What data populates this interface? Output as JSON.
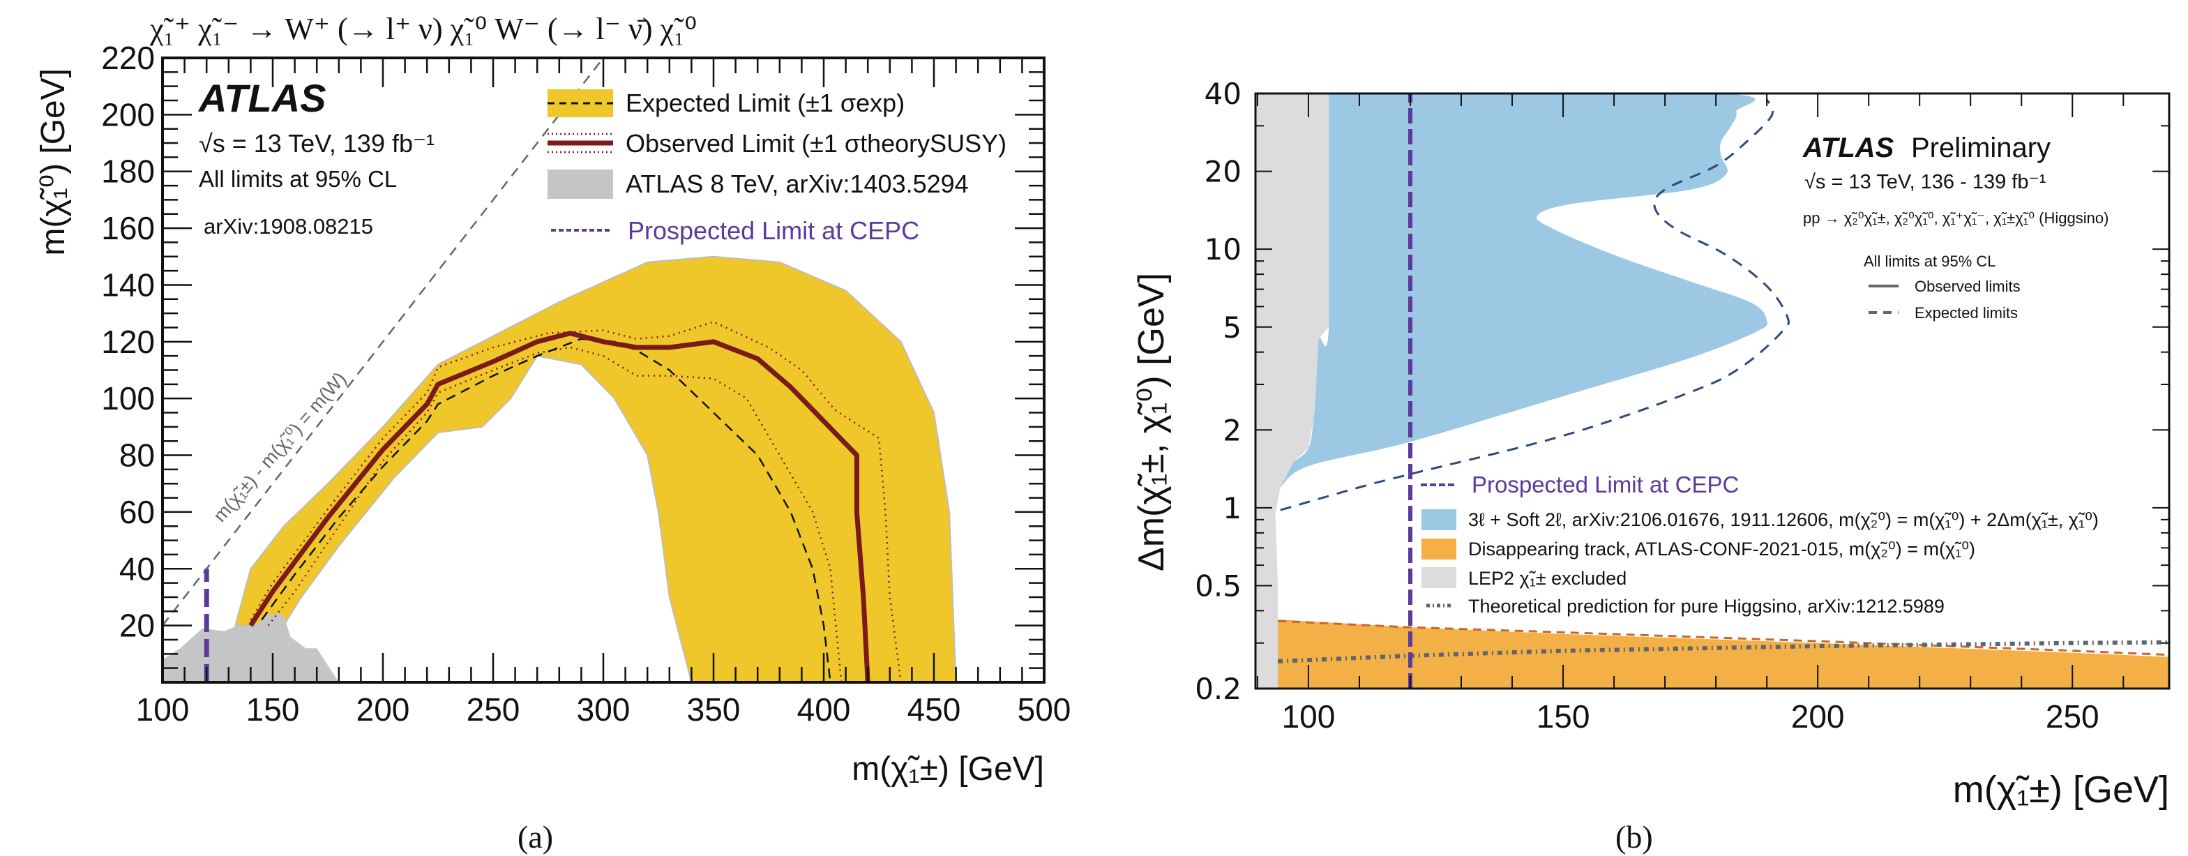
{
  "chart_data": [
    {
      "type": "area",
      "panel_caption": "(a)",
      "title": "χ̃₁⁺ χ̃₁⁻ → W⁺ (→ l⁺ ν) χ̃₁⁰ W⁻ (→ l⁻ ν̄) χ̃₁⁰",
      "xlabel": "m(χ̃₁±) [GeV]",
      "ylabel": "m(χ̃₁⁰) [GeV]",
      "xlim": [
        100,
        500
      ],
      "ylim": [
        0,
        220
      ],
      "xticks": [
        100,
        150,
        200,
        250,
        300,
        350,
        400,
        450,
        500
      ],
      "yticks": [
        20,
        40,
        60,
        80,
        100,
        120,
        140,
        160,
        180,
        200,
        220
      ],
      "annotations": {
        "experiment": "ATLAS",
        "energy": "√s = 13 TeV, 139 fb⁻¹",
        "cl": "All limits at 95% CL",
        "ref": "arXiv:1908.08215",
        "diagonal": "m(χ̃₁±) - m(χ̃₁⁰) = m(W)"
      },
      "legend": [
        {
          "label": "Expected Limit (±1 σ_exp)",
          "kind": "band-dashed",
          "color": "#f0c72a"
        },
        {
          "label": "Observed Limit (±1 σ_theory^SUSY)",
          "kind": "solid-dotted",
          "color": "#7b1a1a"
        },
        {
          "label": "ATLAS 8 TeV, arXiv:1403.5294",
          "kind": "fill",
          "color": "#c4c5c7"
        },
        {
          "label": "Prospected Limit at CEPC",
          "kind": "dashed",
          "color": "#5b3a9a"
        }
      ],
      "legend_placement": "top-right",
      "series": {
        "atlas8_fill": [
          [
            100,
            0
          ],
          [
            100,
            8
          ],
          [
            108,
            12
          ],
          [
            118,
            19
          ],
          [
            128,
            18
          ],
          [
            134,
            20
          ],
          [
            142,
            20
          ],
          [
            148,
            24
          ],
          [
            155,
            24
          ],
          [
            158,
            16
          ],
          [
            165,
            12
          ],
          [
            170,
            12
          ],
          [
            180,
            0
          ]
        ],
        "expected_band_outer": [
          [
            133,
            20
          ],
          [
            140,
            40
          ],
          [
            155,
            55
          ],
          [
            175,
            70
          ],
          [
            200,
            90
          ],
          [
            225,
            112
          ],
          [
            250,
            122
          ],
          [
            280,
            134
          ],
          [
            320,
            148
          ],
          [
            350,
            150
          ],
          [
            380,
            148
          ],
          [
            410,
            138
          ],
          [
            435,
            120
          ],
          [
            450,
            95
          ],
          [
            457,
            60
          ],
          [
            460,
            0
          ]
        ],
        "expected_band_inner": [
          [
            340,
            0
          ],
          [
            330,
            30
          ],
          [
            325,
            60
          ],
          [
            320,
            80
          ],
          [
            305,
            100
          ],
          [
            290,
            112
          ],
          [
            270,
            115
          ],
          [
            258,
            100
          ],
          [
            245,
            90
          ],
          [
            225,
            88
          ],
          [
            205,
            72
          ],
          [
            180,
            48
          ],
          [
            163,
            30
          ],
          [
            155,
            20
          ]
        ],
        "expected_line": [
          [
            145,
            22
          ],
          [
            160,
            38
          ],
          [
            180,
            58
          ],
          [
            200,
            76
          ],
          [
            220,
            92
          ],
          [
            225,
            98
          ],
          [
            250,
            108
          ],
          [
            270,
            115
          ],
          [
            290,
            121
          ],
          [
            305,
            120
          ],
          [
            315,
            117
          ],
          [
            330,
            110
          ],
          [
            350,
            95
          ],
          [
            370,
            80
          ],
          [
            385,
            60
          ],
          [
            395,
            40
          ],
          [
            400,
            20
          ],
          [
            403,
            0
          ]
        ],
        "observed_line": [
          [
            140,
            20
          ],
          [
            150,
            32
          ],
          [
            175,
            58
          ],
          [
            200,
            82
          ],
          [
            220,
            98
          ],
          [
            225,
            105
          ],
          [
            250,
            113
          ],
          [
            270,
            120
          ],
          [
            285,
            123
          ],
          [
            300,
            120
          ],
          [
            315,
            118
          ],
          [
            330,
            118
          ],
          [
            350,
            120
          ],
          [
            370,
            114
          ],
          [
            385,
            104
          ],
          [
            400,
            92
          ],
          [
            415,
            80
          ],
          [
            415,
            60
          ],
          [
            418,
            30
          ],
          [
            420,
            0
          ]
        ],
        "observed_up": [
          [
            140,
            22
          ],
          [
            150,
            35
          ],
          [
            175,
            61
          ],
          [
            200,
            86
          ],
          [
            220,
            102
          ],
          [
            225,
            111
          ],
          [
            250,
            118
          ],
          [
            275,
            123
          ],
          [
            300,
            124
          ],
          [
            315,
            121
          ],
          [
            330,
            122
          ],
          [
            350,
            127
          ],
          [
            375,
            118
          ],
          [
            390,
            110
          ],
          [
            405,
            96
          ],
          [
            425,
            86
          ],
          [
            428,
            60
          ],
          [
            430,
            30
          ],
          [
            435,
            0
          ]
        ],
        "observed_down": [
          [
            148,
            20
          ],
          [
            160,
            32
          ],
          [
            180,
            55
          ],
          [
            200,
            78
          ],
          [
            220,
            95
          ],
          [
            225,
            102
          ],
          [
            250,
            110
          ],
          [
            270,
            116
          ],
          [
            285,
            118
          ],
          [
            300,
            115
          ],
          [
            315,
            108
          ],
          [
            330,
            108
          ],
          [
            350,
            107
          ],
          [
            365,
            100
          ],
          [
            380,
            80
          ],
          [
            395,
            60
          ],
          [
            403,
            40
          ],
          [
            408,
            0
          ]
        ],
        "diagonal": [
          [
            100,
            20
          ],
          [
            220,
            140
          ],
          [
            300,
            220
          ]
        ],
        "cepc_line": [
          [
            120,
            0
          ],
          [
            120,
            40
          ]
        ]
      }
    },
    {
      "type": "area",
      "panel_caption": "(b)",
      "xlabel": "m(χ̃₁±) [GeV]",
      "ylabel": "Δm(χ̃₁±, χ̃₁⁰) [GeV]",
      "xlim": [
        89.6,
        269
      ],
      "ylim": [
        0.2,
        40
      ],
      "yscale": "log",
      "xticks": [
        100,
        150,
        200,
        250
      ],
      "yticks": [
        0.2,
        0.5,
        1,
        2,
        5,
        10,
        20,
        40
      ],
      "annotations": {
        "experiment": "ATLAS",
        "status": "Preliminary",
        "energy": "√s = 13 TeV, 136 - 139 fb⁻¹",
        "process": "pp → χ̃₂⁰χ̃₁±, χ̃₂⁰χ̃₁⁰, χ̃₁⁺χ̃₁⁻, χ̃₁±χ̃₁⁰ (Higgsino)",
        "cl": "All limits at 95% CL",
        "observed_label": "Observed limits",
        "expected_label": "Expected limits"
      },
      "legend": [
        {
          "label": "Prospected Limit at CEPC",
          "kind": "dashed",
          "color": "#5b3a9a"
        },
        {
          "label": "3ℓ + Soft 2ℓ, arXiv:2106.01676, 1911.12606, m(χ̃₂⁰) = m(χ̃₁⁰) + 2Δm(χ̃₁±, χ̃₁⁰)",
          "kind": "fill",
          "color": "#9cc8e4"
        },
        {
          "label": "Disappearing track, ATLAS-CONF-2021-015, m(χ̃₂⁰) = m(χ̃₁⁰)",
          "kind": "fill",
          "color": "#f2b046"
        },
        {
          "label": "LEP2 χ̃₁± excluded",
          "kind": "fill",
          "color": "#dcdcdc"
        },
        {
          "label": "Theoretical prediction for pure Higgsino, arXiv:1212.5989",
          "kind": "dashdot",
          "color": "#5e6470"
        }
      ],
      "legend_placement": "bottom-right",
      "series": {
        "lep2_fill": [
          [
            89.6,
            0.2
          ],
          [
            94,
            0.2
          ],
          [
            94,
            0.5
          ],
          [
            93.5,
            0.95
          ],
          [
            94.5,
            1.2
          ],
          [
            97,
            1.5
          ],
          [
            100,
            1.7
          ],
          [
            101,
            2.2
          ],
          [
            101.5,
            3
          ],
          [
            102,
            4.5
          ],
          [
            104,
            5
          ],
          [
            104,
            40
          ],
          [
            89.6,
            40
          ]
        ],
        "soft_fill": [
          [
            94.5,
            1.2
          ],
          [
            100,
            1.45
          ],
          [
            120,
            1.8
          ],
          [
            150,
            2.7
          ],
          [
            175,
            3.8
          ],
          [
            188,
            4.8
          ],
          [
            190,
            5.3
          ],
          [
            187,
            6.2
          ],
          [
            175,
            7.5
          ],
          [
            160,
            9.5
          ],
          [
            148,
            12
          ],
          [
            145,
            13.5
          ],
          [
            152,
            15
          ],
          [
            175,
            17
          ],
          [
            182,
            19.5
          ],
          [
            181,
            23
          ],
          [
            181,
            26
          ],
          [
            183,
            30
          ],
          [
            184,
            34
          ],
          [
            181,
            40
          ],
          [
            104,
            40
          ],
          [
            104,
            5
          ],
          [
            102,
            4.5
          ],
          [
            101.5,
            3
          ],
          [
            101,
            2.2
          ],
          [
            100,
            1.7
          ],
          [
            97,
            1.5
          ]
        ],
        "soft_expected": [
          [
            94.5,
            0.98
          ],
          [
            110,
            1.2
          ],
          [
            120,
            1.35
          ],
          [
            150,
            1.9
          ],
          [
            175,
            2.8
          ],
          [
            185,
            3.5
          ],
          [
            193,
            4.8
          ],
          [
            194,
            5.5
          ],
          [
            190,
            7.2
          ],
          [
            182,
            9.5
          ],
          [
            172,
            12
          ],
          [
            168,
            14.5
          ],
          [
            170,
            17
          ],
          [
            180,
            21
          ],
          [
            186,
            26
          ],
          [
            191,
            33
          ],
          [
            190,
            38
          ]
        ],
        "disappearing_fill": [
          [
            94,
            0.2
          ],
          [
            94,
            0.37
          ],
          [
            120,
            0.345
          ],
          [
            150,
            0.325
          ],
          [
            200,
            0.3
          ],
          [
            250,
            0.275
          ],
          [
            269,
            0.265
          ],
          [
            269,
            0.2
          ]
        ],
        "disappearing_expected": [
          [
            94,
            0.365
          ],
          [
            120,
            0.345
          ],
          [
            150,
            0.33
          ],
          [
            200,
            0.305
          ],
          [
            250,
            0.28
          ],
          [
            269,
            0.27
          ]
        ],
        "higgsino_theory": [
          [
            94,
            0.255
          ],
          [
            120,
            0.268
          ],
          [
            150,
            0.28
          ],
          [
            200,
            0.292
          ],
          [
            250,
            0.3
          ],
          [
            269,
            0.302
          ]
        ],
        "cepc_line": [
          [
            120,
            0.2
          ],
          [
            120,
            40
          ]
        ]
      }
    }
  ],
  "figure": {
    "caption_a": "(a)",
    "caption_b": "(b)"
  },
  "panel_a": {
    "title": "χ̃₁⁺ χ̃₁⁻ → W⁺ (→ l⁺ ν) χ̃₁⁰ W⁻ (→ l⁻ ν̄) χ̃₁⁰",
    "ylabel": "m(χ̃₁⁰) [GeV]",
    "xlabel": "m(χ̃₁±) [GeV]",
    "atlas": "ATLAS",
    "energy": "√s = 13 TeV, 139 fb⁻¹",
    "cl": "All limits at 95% CL",
    "ref": "arXiv:1908.08215",
    "diagonal_label": "m(χ̃₁±) - m(χ̃₁⁰) = m(W)",
    "legend": [
      "Expected Limit (±1 σexp)",
      "Observed Limit (±1 σtheorySUSY)",
      "ATLAS 8 TeV, arXiv:1403.5294",
      "Prospected Limit at CEPC"
    ]
  },
  "panel_b": {
    "ylabel": "Δm(χ̃₁±, χ̃₁⁰) [GeV]",
    "xlabel": "m(χ̃₁±) [GeV]",
    "atlas": "ATLAS",
    "preliminary": "Preliminary",
    "energy": "√s = 13 TeV, 136 - 139 fb⁻¹",
    "process": "pp → χ̃₂⁰χ̃₁±, χ̃₂⁰χ̃₁⁰, χ̃₁⁺χ̃₁⁻, χ̃₁±χ̃₁⁰ (Higgsino)",
    "cl": "All limits at 95% CL",
    "observed": "Observed limits",
    "expected": "Expected limits",
    "legend": [
      "Prospected Limit at CEPC",
      "3ℓ + Soft 2ℓ, arXiv:2106.01676, 1911.12606, m(χ̃₂⁰) = m(χ̃₁⁰) + 2Δm(χ̃₁±, χ̃₁⁰)",
      "Disappearing track, ATLAS-CONF-2021-015, m(χ̃₂⁰) = m(χ̃₁⁰)",
      "LEP2 χ̃₁± excluded",
      "Theoretical prediction for pure Higgsino, arXiv:1212.5989"
    ]
  },
  "colors": {
    "yellow": "#f0c72a",
    "dark_red": "#7b1a1a",
    "atlas8_grey": "#c4c5c7",
    "cepc_purple": "#5b3a9a",
    "soft_blue": "#9cc8e4",
    "disappearing_orange": "#f2b046",
    "lep_grey": "#dcdcdc",
    "expected_navy": "#2d4a7a",
    "orange_dash": "#c9662a",
    "theory_grey": "#5e6470"
  }
}
